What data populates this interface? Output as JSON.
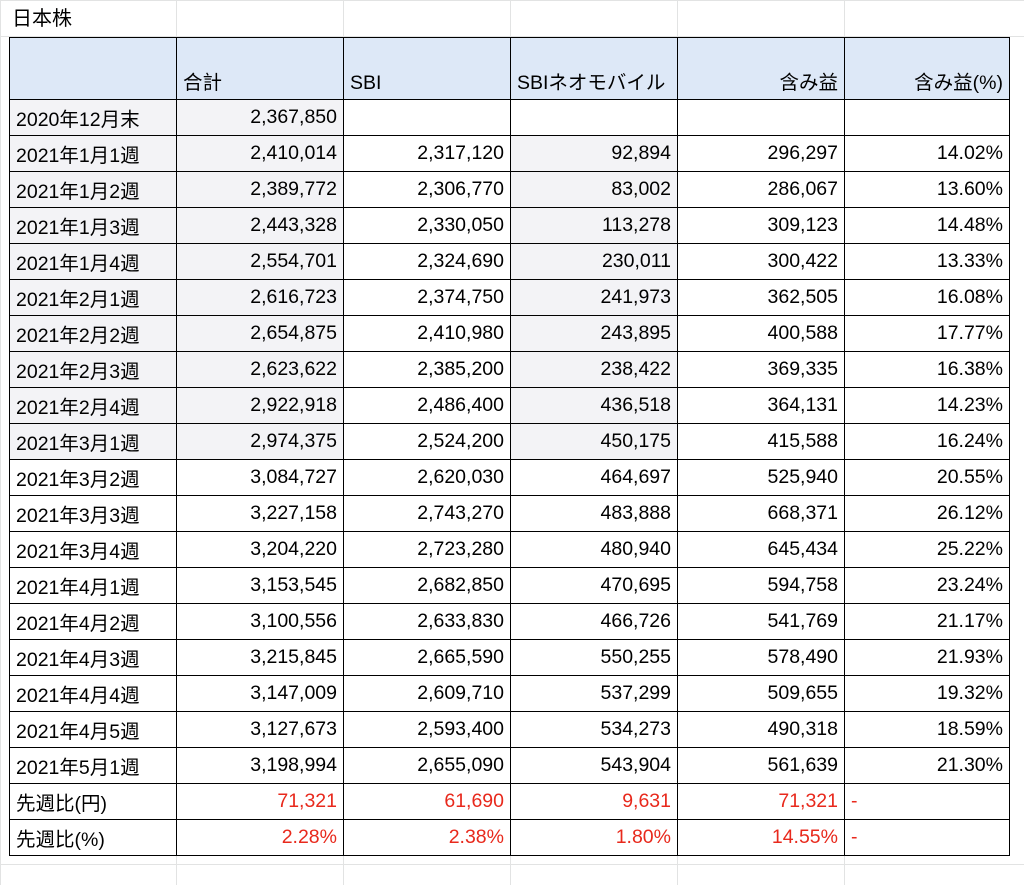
{
  "sheet_title": "日本株",
  "colors": {
    "header_fill": "#dde8f7",
    "shaded_cell_fill": "#f3f3f6",
    "negative_emphasis_red": "#e8291c",
    "border": "#000000"
  },
  "table": {
    "headers": [
      "",
      "合計",
      "SBI",
      "SBIネオモバイル",
      "含み益",
      "含み益(%)"
    ],
    "rows": [
      {
        "label": "2020年12月末",
        "total": "2,367,850",
        "sbi": "",
        "neomobile": "",
        "gain": "",
        "gain_pct": ""
      },
      {
        "label": "2021年1月1週",
        "total": "2,410,014",
        "sbi": "2,317,120",
        "neomobile": "92,894",
        "gain": "296,297",
        "gain_pct": "14.02%"
      },
      {
        "label": "2021年1月2週",
        "total": "2,389,772",
        "sbi": "2,306,770",
        "neomobile": "83,002",
        "gain": "286,067",
        "gain_pct": "13.60%"
      },
      {
        "label": "2021年1月3週",
        "total": "2,443,328",
        "sbi": "2,330,050",
        "neomobile": "113,278",
        "gain": "309,123",
        "gain_pct": "14.48%"
      },
      {
        "label": "2021年1月4週",
        "total": "2,554,701",
        "sbi": "2,324,690",
        "neomobile": "230,011",
        "gain": "300,422",
        "gain_pct": "13.33%"
      },
      {
        "label": "2021年2月1週",
        "total": "2,616,723",
        "sbi": "2,374,750",
        "neomobile": "241,973",
        "gain": "362,505",
        "gain_pct": "16.08%"
      },
      {
        "label": "2021年2月2週",
        "total": "2,654,875",
        "sbi": "2,410,980",
        "neomobile": "243,895",
        "gain": "400,588",
        "gain_pct": "17.77%"
      },
      {
        "label": "2021年2月3週",
        "total": "2,623,622",
        "sbi": "2,385,200",
        "neomobile": "238,422",
        "gain": "369,335",
        "gain_pct": "16.38%"
      },
      {
        "label": "2021年2月4週",
        "total": "2,922,918",
        "sbi": "2,486,400",
        "neomobile": "436,518",
        "gain": "364,131",
        "gain_pct": "14.23%"
      },
      {
        "label": "2021年3月1週",
        "total": "2,974,375",
        "sbi": "2,524,200",
        "neomobile": "450,175",
        "gain": "415,588",
        "gain_pct": "16.24%"
      },
      {
        "label": "2021年3月2週",
        "total": "3,084,727",
        "sbi": "2,620,030",
        "neomobile": "464,697",
        "gain": "525,940",
        "gain_pct": "20.55%"
      },
      {
        "label": "2021年3月3週",
        "total": "3,227,158",
        "sbi": "2,743,270",
        "neomobile": "483,888",
        "gain": "668,371",
        "gain_pct": "26.12%"
      },
      {
        "label": "2021年3月4週",
        "total": "3,204,220",
        "sbi": "2,723,280",
        "neomobile": "480,940",
        "gain": "645,434",
        "gain_pct": "25.22%"
      },
      {
        "label": "2021年4月1週",
        "total": "3,153,545",
        "sbi": "2,682,850",
        "neomobile": "470,695",
        "gain": "594,758",
        "gain_pct": "23.24%"
      },
      {
        "label": "2021年4月2週",
        "total": "3,100,556",
        "sbi": "2,633,830",
        "neomobile": "466,726",
        "gain": "541,769",
        "gain_pct": "21.17%"
      },
      {
        "label": "2021年4月3週",
        "total": "3,215,845",
        "sbi": "2,665,590",
        "neomobile": "550,255",
        "gain": "578,490",
        "gain_pct": "21.93%"
      },
      {
        "label": "2021年4月4週",
        "total": "3,147,009",
        "sbi": "2,609,710",
        "neomobile": "537,299",
        "gain": "509,655",
        "gain_pct": "19.32%"
      },
      {
        "label": "2021年4月5週",
        "total": "3,127,673",
        "sbi": "2,593,400",
        "neomobile": "534,273",
        "gain": "490,318",
        "gain_pct": "18.59%"
      },
      {
        "label": "2021年5月1週",
        "total": "3,198,994",
        "sbi": "2,655,090",
        "neomobile": "543,904",
        "gain": "561,639",
        "gain_pct": "21.30%"
      }
    ],
    "summary_rows": [
      {
        "label": "先週比(円)",
        "total": "71,321",
        "sbi": "61,690",
        "neomobile": "9,631",
        "gain": "71,321",
        "gain_pct": "-"
      },
      {
        "label": "先週比(%)",
        "total": "2.28%",
        "sbi": "2.38%",
        "neomobile": "1.80%",
        "gain": "14.55%",
        "gain_pct": "-"
      }
    ]
  }
}
